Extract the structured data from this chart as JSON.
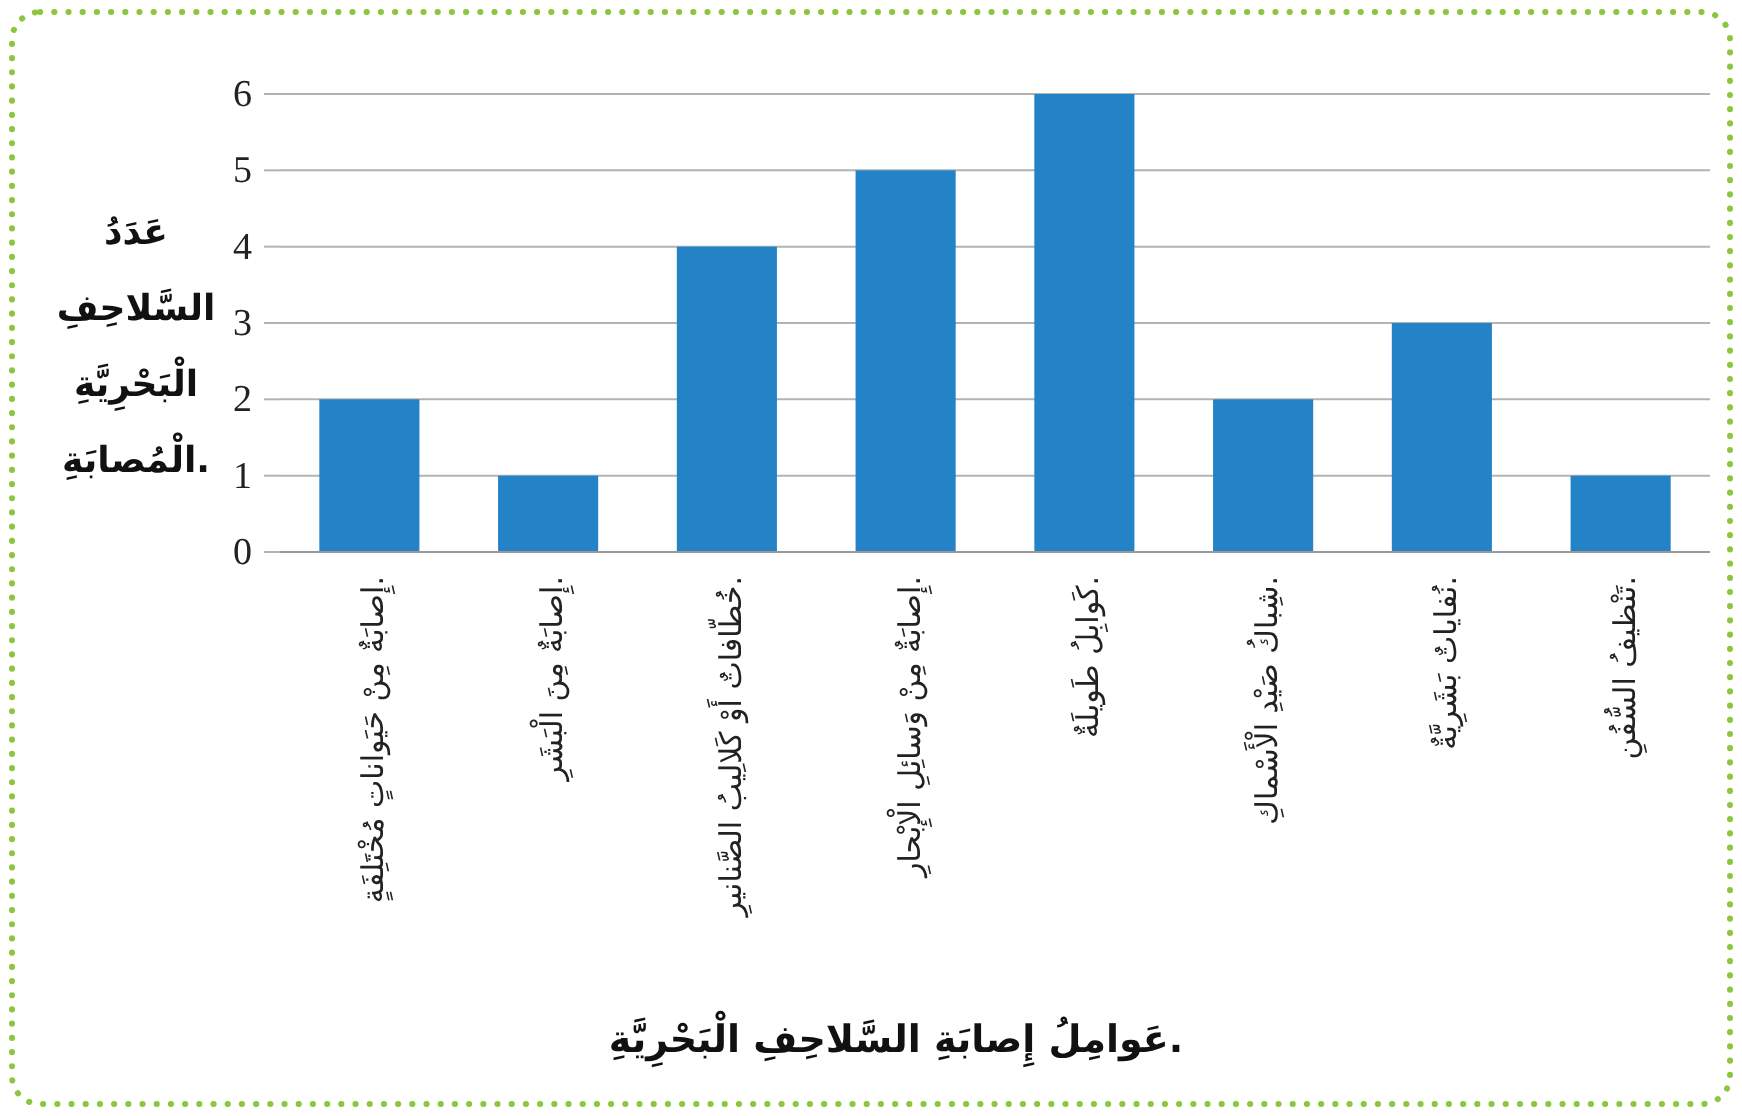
{
  "chart_data": {
    "type": "bar",
    "categories": [
      "إِصابَةٌ مِنْ حَيَواناتٍ مُخْتَلِفَةٍ.",
      "إِصابَةٌ مِنَ الْبَشَرِ.",
      "خُطّافاتٌ أَوْ كَلالِيبُ الصَّنانيرِ.",
      "إِصابَةٌ مِنْ وَسائِلِ الْإِبْحارِ.",
      "كَوابِلُ طَويلَةٌ.",
      "شِباكُ صَيْدِ الْأَسْماكِ.",
      "نُفاياتٌ بَشَرِيَّةٌ.",
      "تَنْظيفُ السُّفُنِ."
    ],
    "values": [
      2,
      1,
      4,
      5,
      6,
      2,
      3,
      1
    ],
    "color": "#2383c6",
    "xlabel": "عَوامِلُ إِصابَةِ السَّلاحِفِ الْبَحْرِيَّةِ.",
    "ylabel": "عَدَدُ السَّلاحِفِ الْبَحْرِيَّةِ الْمُصابَةِ.",
    "ylim": [
      0,
      6
    ],
    "yticks": [
      0,
      1,
      2,
      3,
      4,
      5,
      6
    ],
    "grid": "y"
  }
}
